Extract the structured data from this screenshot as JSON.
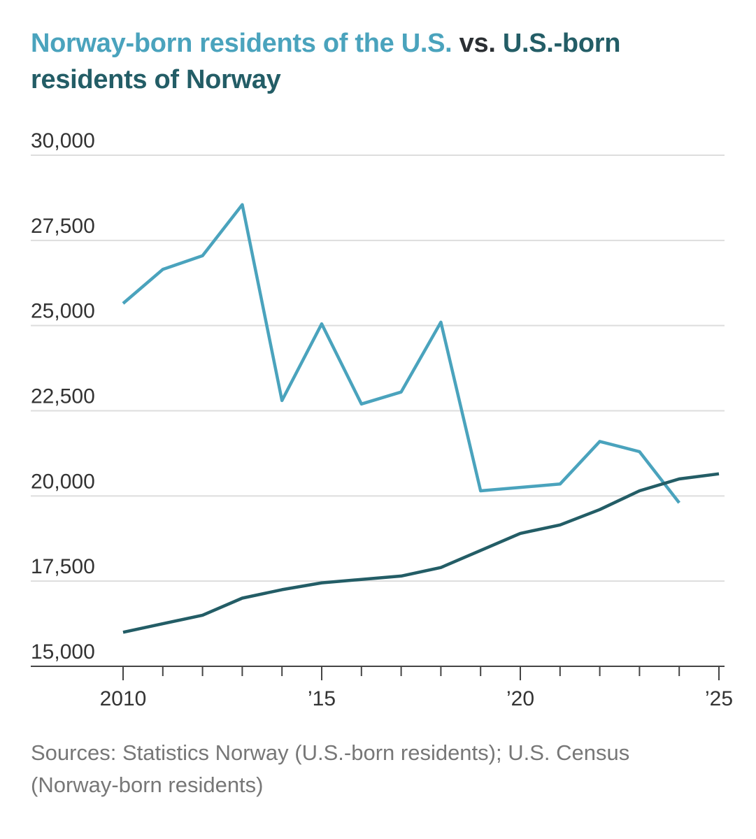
{
  "chart_data": {
    "type": "line",
    "title_parts": [
      "Norway-born residents of the U.S.",
      " vs. ",
      "U.S.-born residents of Norway"
    ],
    "source": "Sources: Statistics Norway (U.S.-born residents); U.S. Census (Norway-born residents)",
    "xlabel": "",
    "ylabel": "",
    "ylim": [
      15000,
      30000
    ],
    "xlim": [
      2010,
      2025
    ],
    "yticks": [
      30000,
      27500,
      25000,
      22500,
      20000,
      17500,
      15000
    ],
    "ytick_labels": [
      "30,000",
      "27,500",
      "25,000",
      "22,500",
      "20,000",
      "17,500",
      "15,000"
    ],
    "xticks_labeled": [
      2010,
      2015,
      2020,
      2025
    ],
    "xtick_labels": [
      "2010",
      "’15",
      "’20",
      "’25"
    ],
    "xticks_minor": [
      2010,
      2011,
      2012,
      2013,
      2014,
      2015,
      2016,
      2017,
      2018,
      2019,
      2020,
      2021,
      2022,
      2023,
      2024,
      2025
    ],
    "grid": true,
    "legend": "none",
    "series": [
      {
        "name": "Norway-born residents of the U.S.",
        "color": "#4aa3bd",
        "x": [
          2010,
          2011,
          2012,
          2013,
          2014,
          2015,
          2016,
          2017,
          2018,
          2019,
          2020,
          2021,
          2022,
          2023,
          2024
        ],
        "values": [
          25650,
          26650,
          27050,
          28550,
          22800,
          25050,
          22700,
          23050,
          25100,
          20150,
          20250,
          20350,
          21600,
          21300,
          19800
        ]
      },
      {
        "name": "U.S.-born residents of Norway",
        "color": "#235d66",
        "x": [
          2010,
          2011,
          2012,
          2013,
          2014,
          2015,
          2016,
          2017,
          2018,
          2019,
          2020,
          2021,
          2022,
          2023,
          2024,
          2025
        ],
        "values": [
          16000,
          16250,
          16500,
          17000,
          17250,
          17450,
          17550,
          17650,
          17900,
          18400,
          18900,
          19150,
          19600,
          20150,
          20500,
          20650
        ]
      }
    ]
  }
}
